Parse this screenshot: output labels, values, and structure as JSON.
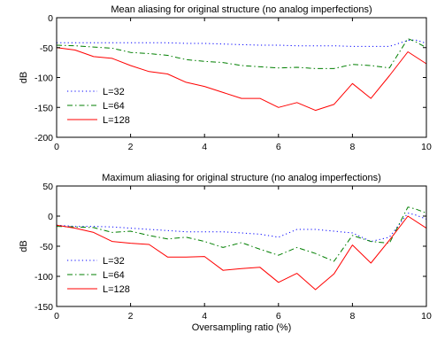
{
  "chart_data": [
    {
      "type": "line",
      "title": "Mean aliasing for original structure (no analog imperfections)",
      "xlabel": "",
      "ylabel": "dB",
      "xlim": [
        0,
        10
      ],
      "ylim": [
        -200,
        0
      ],
      "xticks": [
        0,
        2,
        4,
        6,
        8,
        10
      ],
      "yticks": [
        0,
        -50,
        -100,
        -150,
        -200
      ],
      "grid": false,
      "legend_position": "bottom-left",
      "series": [
        {
          "name": "L=32",
          "color": "#0000ff",
          "style": "dotted",
          "x": [
            0,
            0.5,
            1,
            1.5,
            2,
            2.5,
            3,
            3.5,
            4,
            4.5,
            5,
            5.5,
            6,
            6.5,
            7,
            7.5,
            8,
            8.5,
            9,
            9.5,
            9.7,
            10
          ],
          "y": [
            -42,
            -42,
            -42,
            -42,
            -42,
            -42,
            -42,
            -43,
            -43,
            -44,
            -45,
            -46,
            -46,
            -47,
            -47,
            -47,
            -48,
            -48,
            -48,
            -38,
            -37,
            -43
          ]
        },
        {
          "name": "L=64",
          "color": "#007f00",
          "style": "dashdot",
          "x": [
            0,
            0.5,
            1,
            1.5,
            2,
            2.5,
            3,
            3.5,
            4,
            4.5,
            5,
            5.5,
            6,
            6.5,
            7,
            7.5,
            8,
            8.5,
            9,
            9.5,
            9.7,
            10
          ],
          "y": [
            -46,
            -47,
            -49,
            -51,
            -58,
            -60,
            -63,
            -70,
            -73,
            -75,
            -80,
            -82,
            -84,
            -83,
            -85,
            -85,
            -78,
            -80,
            -84,
            -35,
            -40,
            -50
          ]
        },
        {
          "name": "L=128",
          "color": "#ff0000",
          "style": "solid",
          "x": [
            0,
            0.5,
            1,
            1.5,
            2,
            2.5,
            3,
            3.5,
            4,
            4.5,
            5,
            5.5,
            6,
            6.5,
            7,
            7.5,
            8,
            8.5,
            9,
            9.5,
            10
          ],
          "y": [
            -50,
            -54,
            -65,
            -68,
            -80,
            -90,
            -94,
            -108,
            -115,
            -125,
            -135,
            -135,
            -150,
            -142,
            -155,
            -145,
            -110,
            -135,
            -97,
            -57,
            -77
          ]
        }
      ]
    },
    {
      "type": "line",
      "title": "Maximum aliasing for original structure (no analog imperfections)",
      "xlabel": "Oversampling ratio (%)",
      "ylabel": "dB",
      "xlim": [
        0,
        10
      ],
      "ylim": [
        -150,
        50
      ],
      "xticks": [
        0,
        2,
        4,
        6,
        8,
        10
      ],
      "yticks": [
        50,
        0,
        -50,
        -100,
        -150
      ],
      "grid": false,
      "legend_position": "bottom-left",
      "series": [
        {
          "name": "L=32",
          "color": "#0000ff",
          "style": "dotted",
          "x": [
            0,
            0.5,
            1,
            1.5,
            2,
            2.5,
            3,
            3.5,
            4,
            4.5,
            5,
            5.5,
            6,
            6.5,
            7,
            7.5,
            8,
            8.5,
            9,
            9.5,
            9.7,
            10
          ],
          "y": [
            -15,
            -17,
            -17,
            -18,
            -20,
            -22,
            -24,
            -26,
            -26,
            -26,
            -28,
            -30,
            -35,
            -22,
            -22,
            -25,
            -28,
            -42,
            -35,
            5,
            2,
            -5
          ]
        },
        {
          "name": "L=64",
          "color": "#007f00",
          "style": "dashdot",
          "x": [
            0,
            0.5,
            1,
            1.5,
            2,
            2.5,
            3,
            3.5,
            4,
            4.5,
            5,
            5.5,
            6,
            6.5,
            7,
            7.5,
            8,
            8.5,
            9,
            9.5,
            9.7,
            10
          ],
          "y": [
            -17,
            -18,
            -19,
            -27,
            -25,
            -32,
            -38,
            -35,
            -42,
            -52,
            -44,
            -55,
            -65,
            -52,
            -62,
            -75,
            -32,
            -42,
            -45,
            15,
            12,
            5
          ]
        },
        {
          "name": "L=128",
          "color": "#ff0000",
          "style": "solid",
          "x": [
            0,
            0.5,
            1,
            1.5,
            2,
            2.5,
            3,
            3.5,
            4,
            4.5,
            5,
            5.5,
            6,
            6.5,
            7,
            7.5,
            8,
            8.5,
            9,
            9.5,
            10
          ],
          "y": [
            -15,
            -20,
            -27,
            -42,
            -45,
            -47,
            -68,
            -68,
            -67,
            -90,
            -87,
            -85,
            -110,
            -95,
            -122,
            -96,
            -48,
            -78,
            -40,
            0,
            -20
          ]
        }
      ]
    }
  ]
}
